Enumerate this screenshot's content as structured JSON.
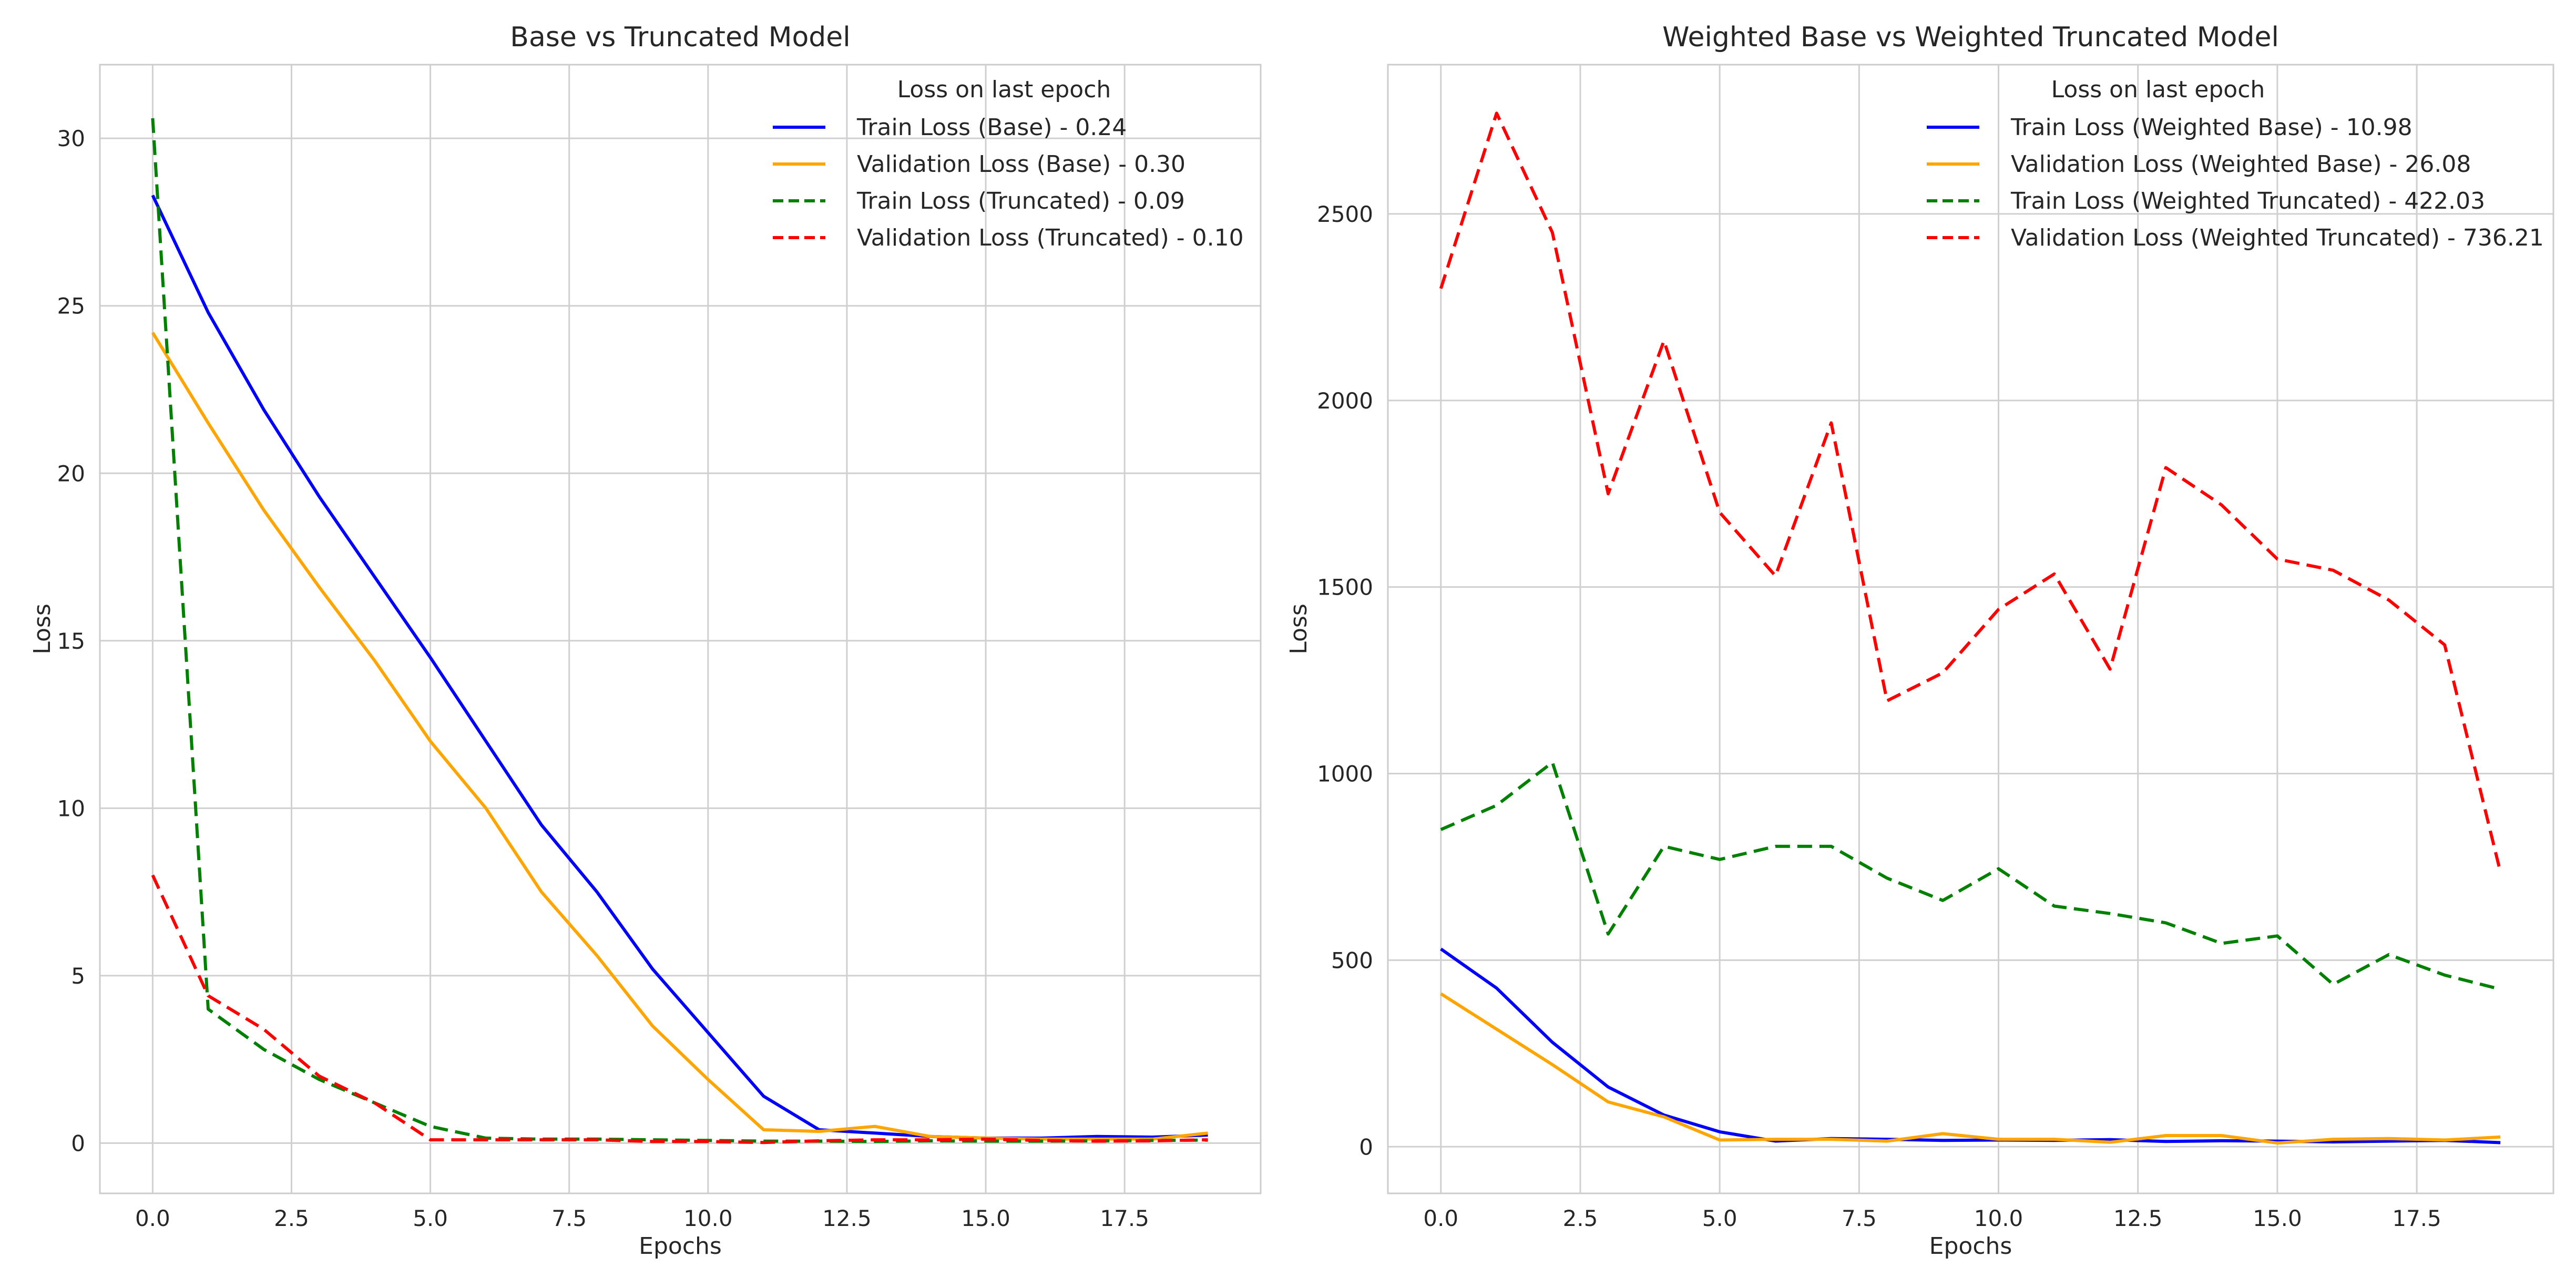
{
  "chart_data": [
    {
      "type": "line",
      "title": "Base vs Truncated Model",
      "xlabel": "Epochs",
      "ylabel": "Loss",
      "xlim": [
        -0.95,
        19.95
      ],
      "ylim": [
        -1.5,
        32.2
      ],
      "xticks": [
        0,
        2.5,
        5,
        7.5,
        10,
        12.5,
        15,
        17.5
      ],
      "xtick_labels": [
        "0.0",
        "2.5",
        "5.0",
        "7.5",
        "10.0",
        "12.5",
        "15.0",
        "17.5"
      ],
      "yticks": [
        0,
        5,
        10,
        15,
        20,
        25,
        30
      ],
      "ytick_labels": [
        "0",
        "5",
        "10",
        "15",
        "20",
        "25",
        "30"
      ],
      "grid": true,
      "legend": {
        "title": "Loss on last epoch",
        "position": "top-right",
        "entries": [
          "Train Loss (Base) - 0.24",
          "Validation Loss (Base) - 0.30",
          "Train Loss (Truncated) - 0.09",
          "Validation Loss (Truncated) - 0.10"
        ]
      },
      "x": [
        0,
        1,
        2,
        3,
        4,
        5,
        6,
        7,
        8,
        9,
        10,
        11,
        12,
        13,
        14,
        15,
        16,
        17,
        18,
        19
      ],
      "series": [
        {
          "name": "Train Loss (Base)",
          "color": "#0000ff",
          "dash": "solid",
          "values": [
            28.3,
            24.8,
            21.9,
            19.3,
            16.9,
            14.5,
            12.0,
            9.5,
            7.5,
            5.2,
            3.3,
            1.4,
            0.4,
            0.3,
            0.2,
            0.15,
            0.15,
            0.2,
            0.18,
            0.24
          ]
        },
        {
          "name": "Validation Loss (Base)",
          "color": "#ffa500",
          "dash": "solid",
          "values": [
            24.2,
            21.5,
            18.9,
            16.6,
            14.4,
            12.0,
            10.0,
            7.5,
            5.6,
            3.5,
            1.9,
            0.4,
            0.35,
            0.5,
            0.2,
            0.15,
            0.12,
            0.12,
            0.12,
            0.3
          ]
        },
        {
          "name": "Train Loss (Truncated)",
          "color": "#008000",
          "dash": "dashed",
          "values": [
            30.6,
            4.0,
            2.8,
            1.9,
            1.2,
            0.5,
            0.15,
            0.12,
            0.12,
            0.1,
            0.08,
            0.06,
            0.06,
            0.05,
            0.07,
            0.06,
            0.06,
            0.07,
            0.08,
            0.09
          ]
        },
        {
          "name": "Validation Loss (Truncated)",
          "color": "#ff0000",
          "dash": "dashed",
          "values": [
            8.0,
            4.4,
            3.4,
            2.0,
            1.2,
            0.1,
            0.1,
            0.1,
            0.1,
            0.05,
            0.05,
            0.02,
            0.07,
            0.1,
            0.1,
            0.12,
            0.08,
            0.06,
            0.07,
            0.1
          ]
        }
      ]
    },
    {
      "type": "line",
      "title": "Weighted Base vs Weighted Truncated Model",
      "xlabel": "Epochs",
      "ylabel": "Loss",
      "xlim": [
        -0.95,
        19.95
      ],
      "ylim": [
        -125,
        2900
      ],
      "xticks": [
        0,
        2.5,
        5,
        7.5,
        10,
        12.5,
        15,
        17.5
      ],
      "xtick_labels": [
        "0.0",
        "2.5",
        "5.0",
        "7.5",
        "10.0",
        "12.5",
        "15.0",
        "17.5"
      ],
      "yticks": [
        0,
        500,
        1000,
        1500,
        2000,
        2500
      ],
      "ytick_labels": [
        "0",
        "500",
        "1000",
        "1500",
        "2000",
        "2500"
      ],
      "grid": true,
      "legend": {
        "title": "Loss on last epoch",
        "position": "top-right",
        "entries": [
          "Train Loss (Weighted Base) - 10.98",
          "Validation Loss (Weighted Base) - 26.08",
          "Train Loss (Weighted Truncated) - 422.03",
          "Validation Loss (Weighted Truncated) - 736.21"
        ]
      },
      "x": [
        0,
        1,
        2,
        3,
        4,
        5,
        6,
        7,
        8,
        9,
        10,
        11,
        12,
        13,
        14,
        15,
        16,
        17,
        18,
        19
      ],
      "series": [
        {
          "name": "Train Loss (Weighted Base)",
          "color": "#0000ff",
          "dash": "solid",
          "values": [
            530,
            425,
            280,
            160,
            85,
            40,
            15,
            22,
            20,
            17,
            18,
            17,
            19,
            14,
            16,
            15,
            13,
            15,
            17,
            10.98
          ]
        },
        {
          "name": "Validation Loss (Weighted Base)",
          "color": "#ffa500",
          "dash": "solid",
          "values": [
            410,
            315,
            220,
            120,
            80,
            18,
            20,
            20,
            15,
            35,
            20,
            20,
            12,
            30,
            30,
            10,
            20,
            22,
            18,
            26.08
          ]
        },
        {
          "name": "Train Loss (Weighted Truncated)",
          "color": "#008000",
          "dash": "dashed",
          "values": [
            850,
            915,
            1030,
            570,
            805,
            770,
            805,
            805,
            720,
            660,
            745,
            645,
            625,
            600,
            545,
            565,
            435,
            515,
            460,
            422.03
          ]
        },
        {
          "name": "Validation Loss (Weighted Truncated)",
          "color": "#ff0000",
          "dash": "dashed",
          "values": [
            2300,
            2770,
            2450,
            1750,
            2160,
            1700,
            1530,
            1940,
            1195,
            1270,
            1440,
            1535,
            1280,
            1820,
            1720,
            1575,
            1545,
            1465,
            1345,
            736.21
          ]
        }
      ]
    }
  ]
}
